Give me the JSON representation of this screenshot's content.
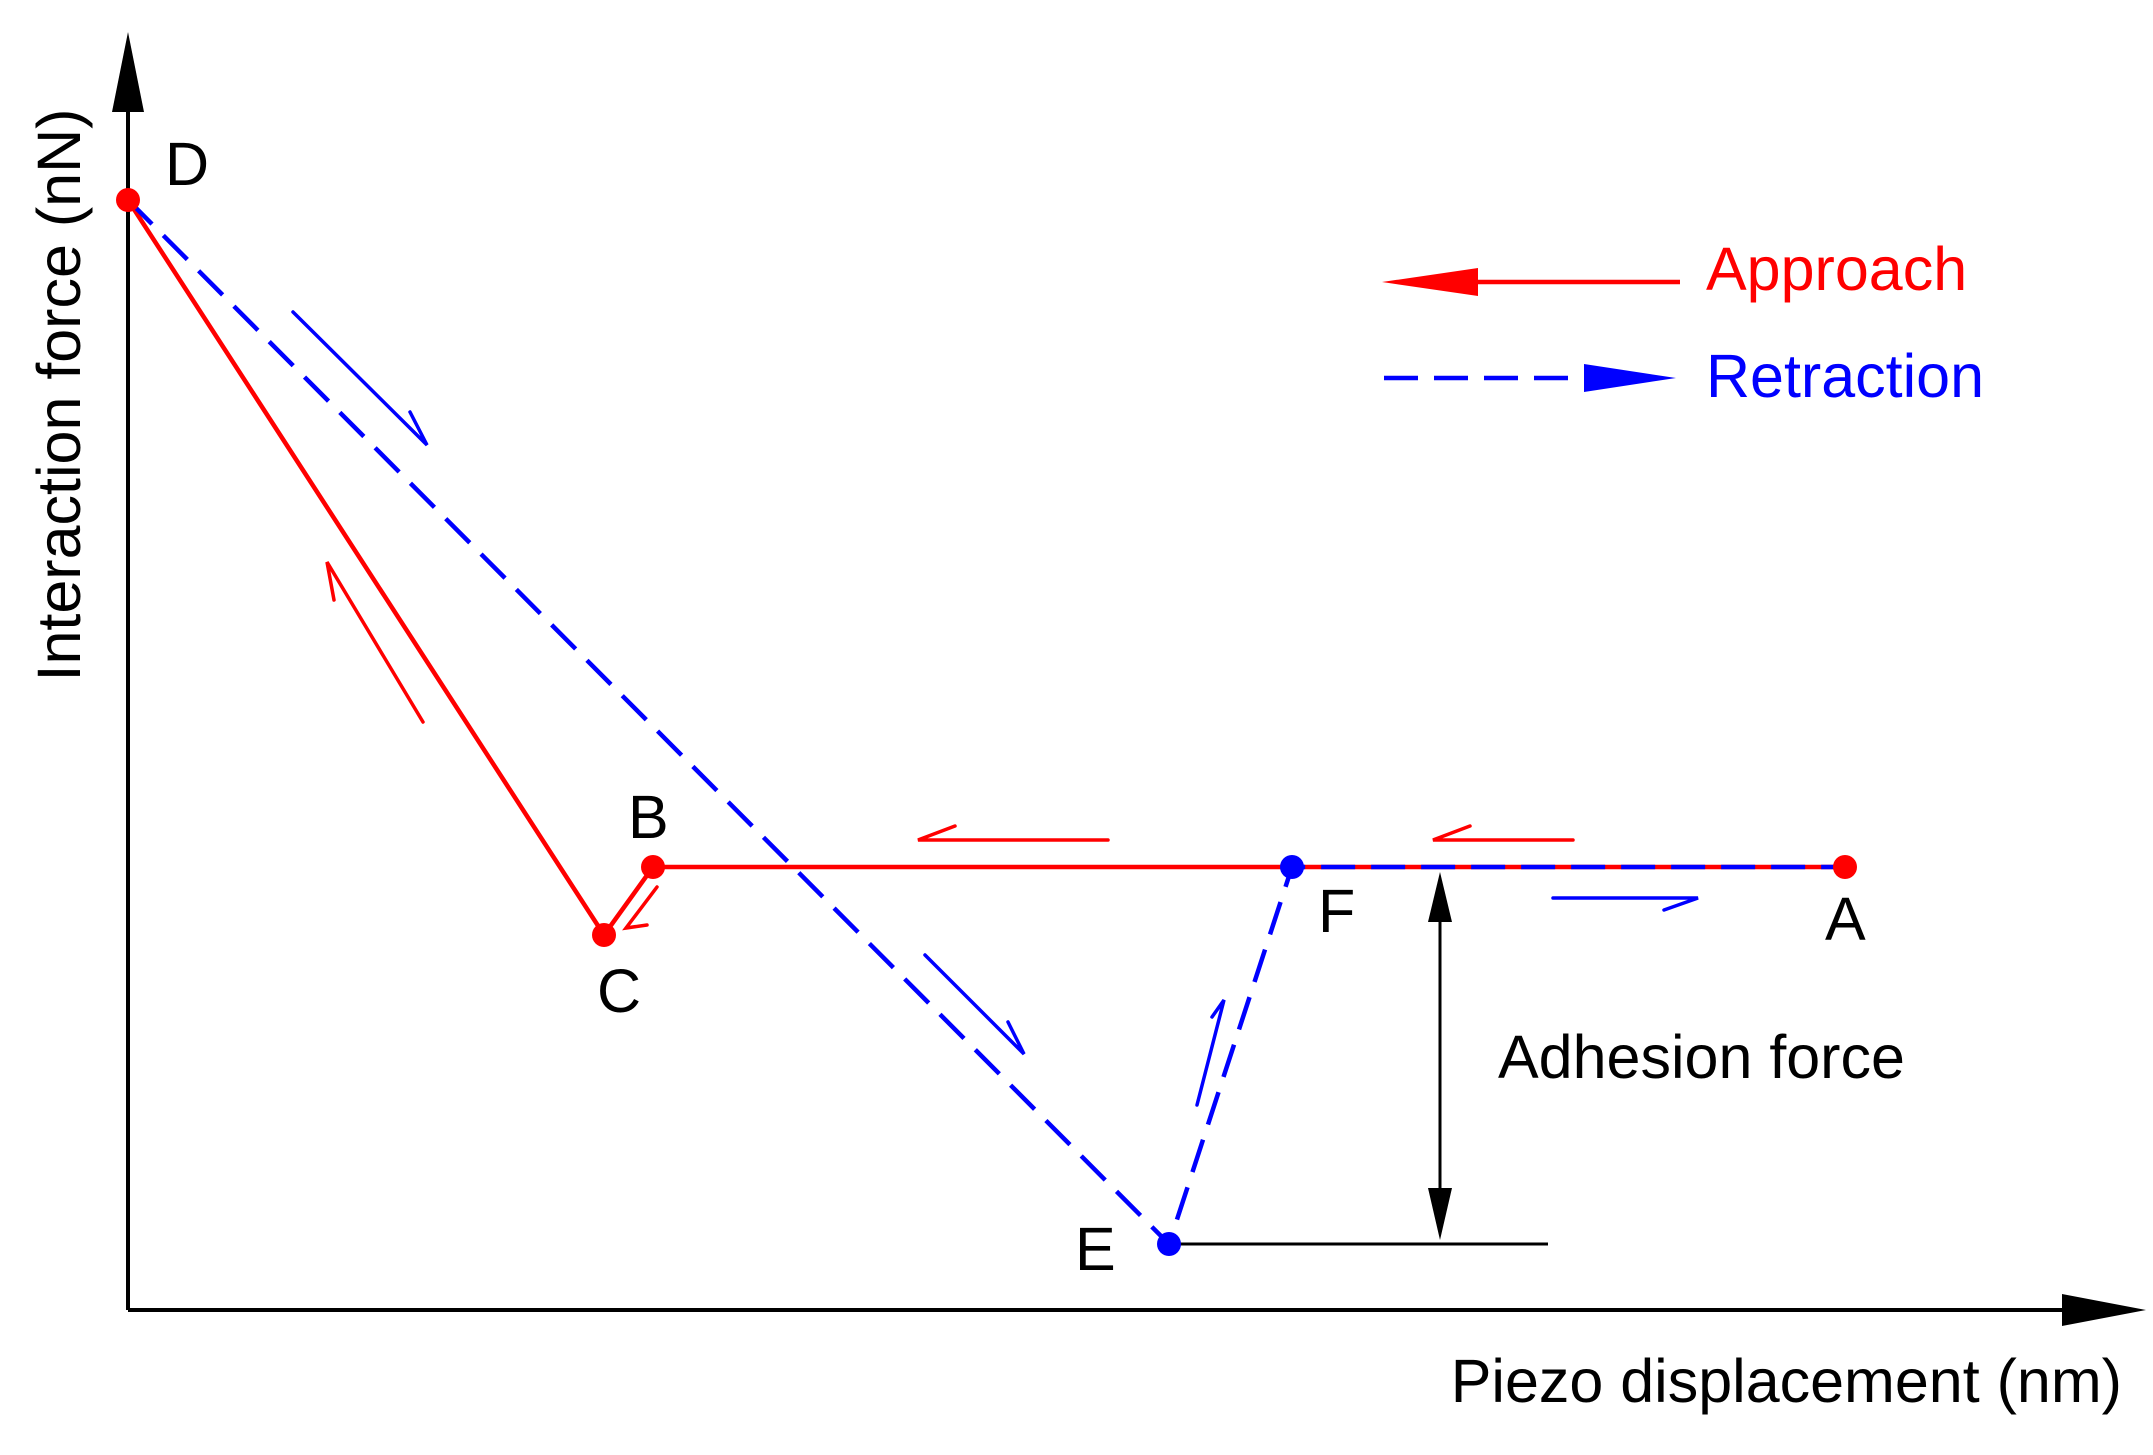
{
  "diagram": {
    "y_axis_label": "Interaction force (nN)",
    "x_axis_label": "Piezo displacement (nm)",
    "annotation": "Adhesion force",
    "points": [
      {
        "id": "D",
        "label": "D",
        "series": "approach"
      },
      {
        "id": "B",
        "label": "B",
        "series": "approach"
      },
      {
        "id": "C",
        "label": "C",
        "series": "approach"
      },
      {
        "id": "E",
        "label": "E",
        "series": "retraction"
      },
      {
        "id": "F",
        "label": "F",
        "series": "retraction"
      },
      {
        "id": "A",
        "label": "A",
        "series": "approach"
      }
    ],
    "legend": [
      {
        "id": "approach",
        "label": "Approach",
        "color": "#ff0000",
        "line_style": "solid",
        "direction": "left"
      },
      {
        "id": "retraction",
        "label": "Retraction",
        "color": "#0000ff",
        "line_style": "dashed",
        "direction": "right"
      }
    ],
    "colors": {
      "approach": "#ff0000",
      "retraction": "#0000ff",
      "axis": "#000000"
    }
  }
}
